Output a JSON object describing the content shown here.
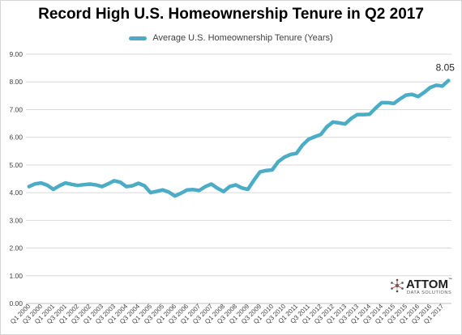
{
  "chart_data": {
    "type": "line",
    "title": "Record High U.S. Homeownership Tenure in Q2 2017",
    "series": [
      {
        "name": "Average U.S. Homeownership Tenure (Years)",
        "color": "#4bacc6",
        "values": [
          4.22,
          4.32,
          4.35,
          4.27,
          4.12,
          4.25,
          4.35,
          4.3,
          4.26,
          4.29,
          4.31,
          4.28,
          4.22,
          4.32,
          4.43,
          4.38,
          4.22,
          4.25,
          4.34,
          4.25,
          4.0,
          4.05,
          4.1,
          4.02,
          3.88,
          3.98,
          4.1,
          4.11,
          4.08,
          4.22,
          4.31,
          4.16,
          4.04,
          4.22,
          4.28,
          4.17,
          4.12,
          4.45,
          4.75,
          4.8,
          4.82,
          5.12,
          5.28,
          5.38,
          5.42,
          5.72,
          5.93,
          6.02,
          6.1,
          6.38,
          6.55,
          6.52,
          6.48,
          6.68,
          6.82,
          6.82,
          6.83,
          7.05,
          7.25,
          7.25,
          7.22,
          7.38,
          7.52,
          7.55,
          7.47,
          7.62,
          7.8,
          7.88,
          7.85,
          8.05
        ]
      }
    ],
    "x_tick_labels": [
      "Q1 2000",
      "Q3 2000",
      "Q1 2001",
      "Q3 2001",
      "Q1 2002",
      "Q3 2002",
      "Q1 2003",
      "Q3 2003",
      "Q1 2004",
      "Q3 2004",
      "Q1 2005",
      "Q3 2005",
      "Q1 2006",
      "Q3 2006",
      "Q1 2007",
      "Q3 2007",
      "Q1 2008",
      "Q3 2008",
      "Q1 2009",
      "Q3 2009",
      "Q1 2010",
      "Q3 2010",
      "Q1 2011",
      "Q3 2011",
      "Q1 2012",
      "Q3 2012",
      "Q1 2013",
      "Q3 2013",
      "Q1 2014",
      "Q3 2014",
      "Q1 2015",
      "Q3 2015",
      "Q1 2016",
      "Q3 2016",
      "Q1 2017"
    ],
    "y_tick_labels": [
      "0.00",
      "1.00",
      "2.00",
      "3.00",
      "4.00",
      "5.00",
      "6.00",
      "7.00",
      "8.00",
      "9.00"
    ],
    "ylim": [
      0,
      9
    ],
    "grid": true,
    "legend_position": "top-center",
    "annotation": "8.05"
  },
  "logo": {
    "name": "ATTOM",
    "tagline": "DATA SOLUTIONS",
    "tm": "™"
  }
}
